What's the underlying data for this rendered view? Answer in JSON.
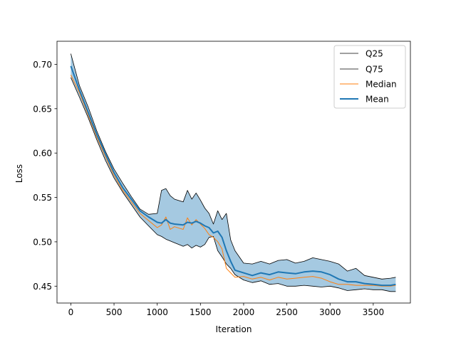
{
  "chart_data": {
    "type": "line",
    "title": "",
    "xlabel": "Iteration",
    "ylabel": "Loss",
    "xlim": [
      -160,
      3930
    ],
    "ylim": [
      0.431,
      0.726
    ],
    "xticks": [
      0,
      500,
      1000,
      1500,
      2000,
      2500,
      3000,
      3500
    ],
    "xtick_labels": [
      "0",
      "500",
      "1000",
      "1500",
      "2000",
      "2500",
      "3000",
      "3500"
    ],
    "yticks": [
      0.45,
      0.5,
      0.55,
      0.6,
      0.65,
      0.7
    ],
    "ytick_labels": [
      "0.45",
      "0.50",
      "0.55",
      "0.60",
      "0.65",
      "0.70"
    ],
    "grid": false,
    "legend_position": "top-right",
    "colors": {
      "q25": "#000000",
      "q75": "#000000",
      "median": "#ff7f0e",
      "mean": "#1f77b4",
      "band": "#1f77b4"
    },
    "band_between": [
      "Q25",
      "Q75"
    ],
    "x": [
      0,
      100,
      200,
      300,
      400,
      500,
      600,
      700,
      800,
      900,
      1000,
      1050,
      1100,
      1150,
      1200,
      1300,
      1350,
      1400,
      1450,
      1500,
      1550,
      1600,
      1650,
      1700,
      1750,
      1800,
      1850,
      1900,
      2000,
      2100,
      2200,
      2300,
      2400,
      2500,
      2600,
      2700,
      2800,
      2900,
      3000,
      3100,
      3200,
      3300,
      3400,
      3500,
      3600,
      3700,
      3760
    ],
    "series": [
      {
        "name": "Q25",
        "values": [
          0.685,
          0.663,
          0.64,
          0.615,
          0.592,
          0.572,
          0.556,
          0.542,
          0.528,
          0.518,
          0.508,
          0.506,
          0.503,
          0.501,
          0.499,
          0.495,
          0.497,
          0.493,
          0.496,
          0.494,
          0.497,
          0.505,
          0.506,
          0.49,
          0.483,
          0.475,
          0.47,
          0.463,
          0.457,
          0.454,
          0.456,
          0.452,
          0.453,
          0.45,
          0.45,
          0.451,
          0.45,
          0.449,
          0.45,
          0.448,
          0.445,
          0.446,
          0.447,
          0.446,
          0.446,
          0.444,
          0.444
        ]
      },
      {
        "name": "Q75",
        "values": [
          0.712,
          0.676,
          0.652,
          0.625,
          0.602,
          0.582,
          0.566,
          0.551,
          0.537,
          0.531,
          0.532,
          0.558,
          0.56,
          0.552,
          0.548,
          0.545,
          0.558,
          0.548,
          0.555,
          0.547,
          0.538,
          0.532,
          0.52,
          0.535,
          0.525,
          0.532,
          0.502,
          0.49,
          0.476,
          0.475,
          0.478,
          0.475,
          0.479,
          0.48,
          0.476,
          0.478,
          0.482,
          0.48,
          0.478,
          0.475,
          0.467,
          0.47,
          0.462,
          0.46,
          0.458,
          0.459,
          0.46
        ]
      },
      {
        "name": "Median",
        "values": [
          0.688,
          0.668,
          0.643,
          0.618,
          0.596,
          0.575,
          0.558,
          0.545,
          0.532,
          0.524,
          0.516,
          0.519,
          0.528,
          0.514,
          0.517,
          0.514,
          0.527,
          0.519,
          0.525,
          0.52,
          0.515,
          0.508,
          0.505,
          0.5,
          0.492,
          0.47,
          0.465,
          0.46,
          0.461,
          0.458,
          0.46,
          0.457,
          0.46,
          0.458,
          0.459,
          0.46,
          0.461,
          0.459,
          0.455,
          0.452,
          0.452,
          0.451,
          0.451,
          0.451,
          0.45,
          0.45,
          0.451
        ]
      },
      {
        "name": "Mean",
        "values": [
          0.698,
          0.671,
          0.646,
          0.621,
          0.599,
          0.578,
          0.561,
          0.548,
          0.535,
          0.528,
          0.522,
          0.521,
          0.525,
          0.521,
          0.52,
          0.519,
          0.522,
          0.521,
          0.523,
          0.521,
          0.518,
          0.516,
          0.51,
          0.512,
          0.505,
          0.49,
          0.478,
          0.468,
          0.465,
          0.462,
          0.465,
          0.463,
          0.466,
          0.465,
          0.464,
          0.466,
          0.467,
          0.466,
          0.463,
          0.458,
          0.455,
          0.455,
          0.453,
          0.452,
          0.451,
          0.451,
          0.452
        ]
      }
    ]
  },
  "legend": {
    "items": [
      {
        "label": "Q25"
      },
      {
        "label": "Q75"
      },
      {
        "label": "Median"
      },
      {
        "label": "Mean"
      }
    ]
  }
}
